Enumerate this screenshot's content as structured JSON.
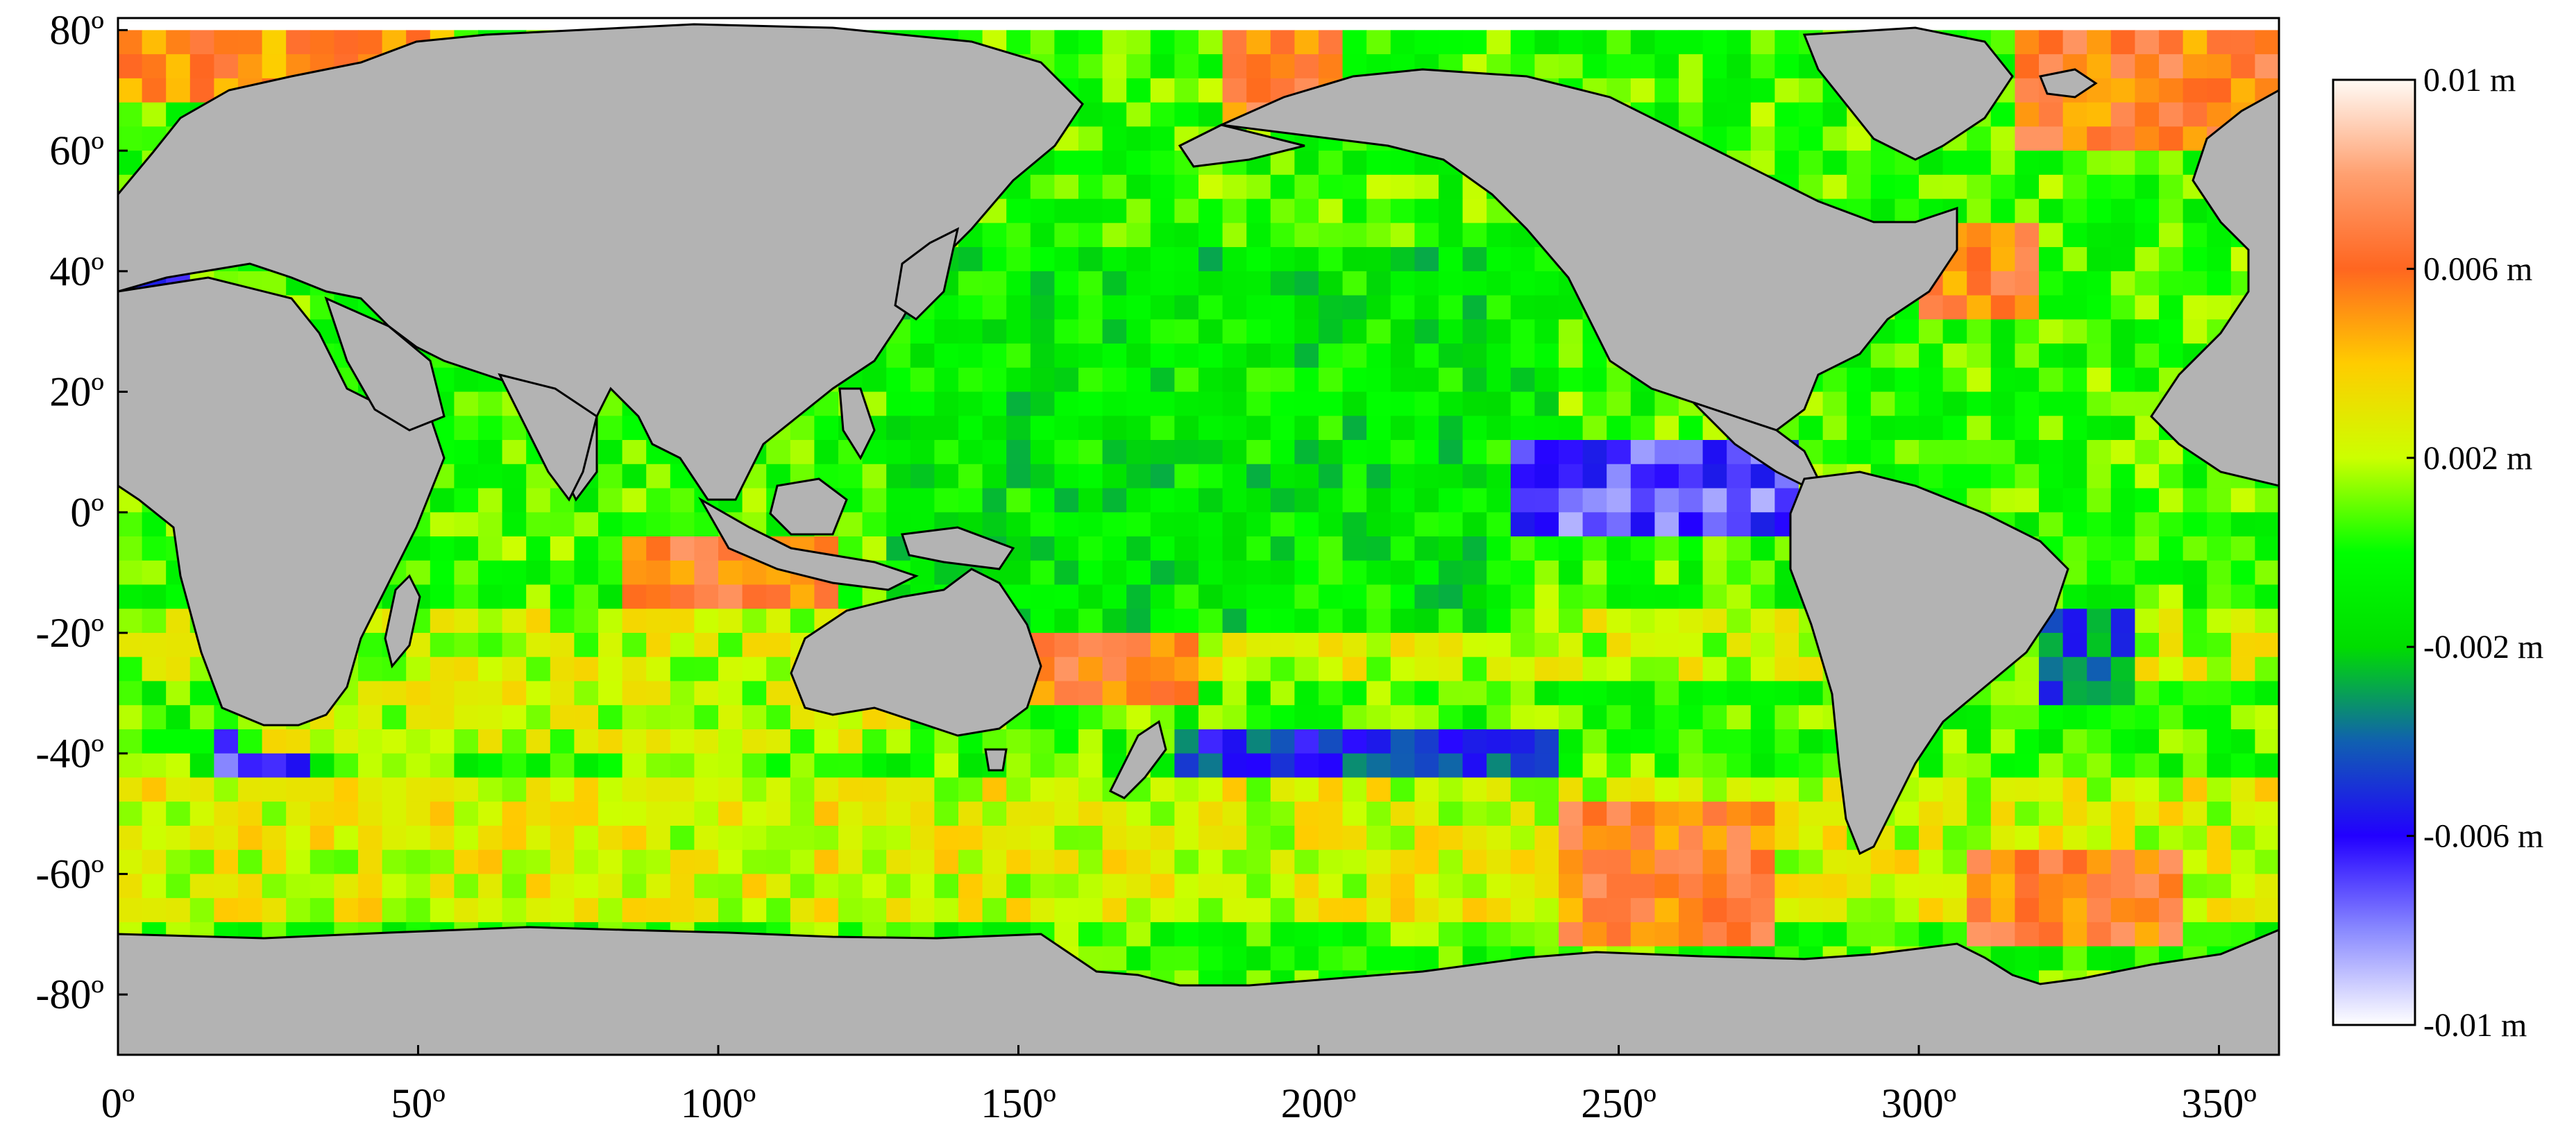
{
  "chart_data": {
    "type": "heatmap",
    "title": "",
    "xlabel": "",
    "ylabel": "",
    "xlim": [
      0,
      360
    ],
    "ylim": [
      -90,
      82
    ],
    "grid": false,
    "x_ticks": [
      0,
      50,
      100,
      150,
      200,
      250,
      300,
      350
    ],
    "x_tick_labels": [
      "0º",
      "50º",
      "100º",
      "150º",
      "200º",
      "250º",
      "300º",
      "350º"
    ],
    "y_ticks": [
      80,
      60,
      40,
      20,
      0,
      -20,
      -40,
      -60,
      -80
    ],
    "y_tick_labels": [
      "80º",
      "60º",
      "40º",
      "20º",
      "0º",
      "-20º",
      "-40º",
      "-60º",
      "-80º"
    ],
    "colorbar": {
      "range": [
        -0.01,
        0.01
      ],
      "unit": "m",
      "ticks": [
        0.01,
        0.006,
        0.002,
        -0.002,
        -0.006,
        -0.01
      ],
      "tick_labels": [
        "0.01 m",
        "0.006 m",
        "0.002 m",
        "-0.002 m",
        "-0.006 m",
        "-0.01 m"
      ],
      "color_stops": [
        {
          "value": -0.01,
          "color": "#ffffff"
        },
        {
          "value": -0.008,
          "color": "#8a8aff"
        },
        {
          "value": -0.006,
          "color": "#2200ff"
        },
        {
          "value": -0.004,
          "color": "#1060b0"
        },
        {
          "value": -0.002,
          "color": "#00dd00"
        },
        {
          "value": 0.0,
          "color": "#00ff00"
        },
        {
          "value": 0.002,
          "color": "#ccff00"
        },
        {
          "value": 0.004,
          "color": "#ffcc00"
        },
        {
          "value": 0.006,
          "color": "#ff6620"
        },
        {
          "value": 0.008,
          "color": "#ffa070"
        },
        {
          "value": 0.01,
          "color": "#fffaf5"
        }
      ]
    },
    "land_color": "#b3b3b3",
    "ocean_regions": [
      {
        "lat": [
          70,
          80
        ],
        "lon": [
          0,
          55
        ],
        "value": 0.005
      },
      {
        "lat": [
          65,
          80
        ],
        "lon": [
          185,
          205
        ],
        "value": 0.006
      },
      {
        "lat": [
          60,
          80
        ],
        "lon": [
          315,
          360
        ],
        "value": 0.006
      },
      {
        "lat": [
          35,
          42
        ],
        "lon": [
          0,
          12
        ],
        "value": -0.007
      },
      {
        "lat": [
          32,
          46
        ],
        "lon": [
          300,
          318
        ],
        "value": 0.006
      },
      {
        "lat": [
          -2,
          12
        ],
        "lon": [
          220,
          280
        ],
        "value": -0.007
      },
      {
        "lat": [
          0,
          10
        ],
        "lon": [
          170,
          215
        ],
        "value": -0.004
      },
      {
        "lat": [
          -30,
          -5
        ],
        "lon": [
          85,
          120
        ],
        "value": 0.006
      },
      {
        "lat": [
          -30,
          -15
        ],
        "lon": [
          150,
          180
        ],
        "value": 0.006
      },
      {
        "lat": [
          -70,
          -50
        ],
        "lon": [
          240,
          275
        ],
        "value": 0.006
      },
      {
        "lat": [
          -70,
          -55
        ],
        "lon": [
          310,
          345
        ],
        "value": 0.006
      },
      {
        "lat": [
          -45,
          -35
        ],
        "lon": [
          175,
          240
        ],
        "value": -0.005
      },
      {
        "lat": [
          -45,
          -38
        ],
        "lon": [
          15,
          30
        ],
        "value": -0.007
      },
      {
        "lat": [
          -30,
          -18
        ],
        "lon": [
          320,
          335
        ],
        "value": -0.004
      },
      {
        "lat": [
          -20,
          40
        ],
        "lon": [
          130,
          230
        ],
        "value": -0.001
      },
      {
        "lat": [
          -40,
          -15
        ],
        "lon": [
          20,
          130
        ],
        "value": 0.002
      }
    ]
  }
}
